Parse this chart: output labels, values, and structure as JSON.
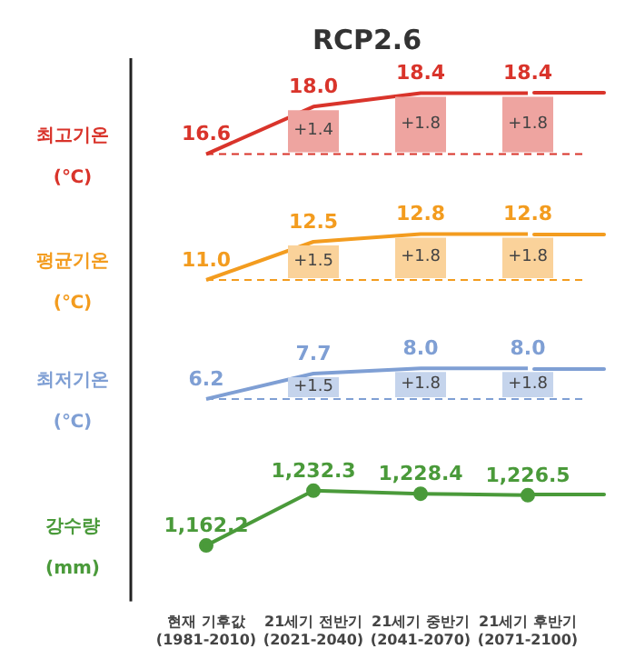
{
  "chart_data": [
    {
      "type": "line",
      "title": "RCP2.6",
      "ylabel": "최고기온\n(℃)",
      "categories": [
        "현재 기후값 (1981-2010)",
        "21세기 전반기 (2021-2040)",
        "21세기 중반기 (2041-2070)",
        "21세기 후반기 (2071-2100)"
      ],
      "tick_labels": false,
      "marker": "none",
      "series": [
        {
          "color": "#d9342b",
          "values": [
            16.6,
            18.0,
            18.4,
            18.4
          ],
          "value_labels": [
            "16.6",
            "18.0",
            "18.4",
            "18.4"
          ]
        }
      ],
      "ref_lines": [
        {
          "axis": "y",
          "value": 16.6,
          "color": "#d9342b",
          "line_style": "dashed"
        }
      ],
      "annotations": [
        {
          "text": "+1.4",
          "x": "21세기 전반기 (2021-2040)",
          "y": 17.3
        },
        {
          "text": "+1.8",
          "x": "21세기 중반기 (2041-2070)",
          "y": 17.5
        },
        {
          "text": "+1.8",
          "x": "21세기 후반기 (2071-2100)",
          "y": 17.5
        }
      ]
    },
    {
      "type": "line",
      "ylabel": "평균기온\n(℃)",
      "categories": [
        "현재 기후값 (1981-2010)",
        "21세기 전반기 (2021-2040)",
        "21세기 중반기 (2041-2070)",
        "21세기 후반기 (2071-2100)"
      ],
      "tick_labels": false,
      "marker": "none",
      "series": [
        {
          "color": "#f39c1f",
          "values": [
            11.0,
            12.5,
            12.8,
            12.8
          ],
          "value_labels": [
            "11.0",
            "12.5",
            "12.8",
            "12.8"
          ]
        }
      ],
      "ref_lines": [
        {
          "axis": "y",
          "value": 11.0,
          "color": "#f39c1f",
          "line_style": "dashed"
        }
      ],
      "annotations": [
        {
          "text": "+1.5",
          "x": "21세기 전반기 (2021-2040)",
          "y": 11.75
        },
        {
          "text": "+1.8",
          "x": "21세기 중반기 (2041-2070)",
          "y": 11.9
        },
        {
          "text": "+1.8",
          "x": "21세기 후반기 (2071-2100)",
          "y": 11.9
        }
      ]
    },
    {
      "type": "line",
      "ylabel": "최저기온\n(℃)",
      "categories": [
        "현재 기후값 (1981-2010)",
        "21세기 전반기 (2021-2040)",
        "21세기 중반기 (2041-2070)",
        "21세기 후반기 (2071-2100)"
      ],
      "tick_labels": false,
      "marker": "none",
      "series": [
        {
          "color": "#7f9fd4",
          "values": [
            6.2,
            7.7,
            8.0,
            8.0
          ],
          "value_labels": [
            "6.2",
            "7.7",
            "8.0",
            "8.0"
          ]
        }
      ],
      "ref_lines": [
        {
          "axis": "y",
          "value": 6.2,
          "color": "#7f9fd4",
          "line_style": "dashed"
        }
      ],
      "annotations": [
        {
          "text": "+1.5",
          "x": "21세기 전반기 (2021-2040)",
          "y": 6.95
        },
        {
          "text": "+1.8",
          "x": "21세기 중반기 (2041-2070)",
          "y": 7.1
        },
        {
          "text": "+1.8",
          "x": "21세기 후반기 (2071-2100)",
          "y": 7.1
        }
      ]
    },
    {
      "type": "line",
      "ylabel": "강수량\n(mm)",
      "categories": [
        "현재 기후값 (1981-2010)",
        "21세기 전반기 (2021-2040)",
        "21세기 중반기 (2041-2070)",
        "21세기 후반기 (2071-2100)"
      ],
      "tick_labels": "x",
      "marker": "circle",
      "series": [
        {
          "color": "#4a9a3a",
          "values": [
            1162.2,
            1232.3,
            1228.4,
            1226.5
          ],
          "value_labels": [
            "1,162.2",
            "1,232.3",
            "1,228.4",
            "1,226.5"
          ]
        }
      ]
    }
  ]
}
